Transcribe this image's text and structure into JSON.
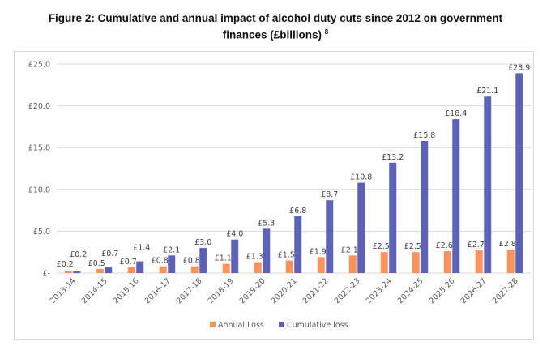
{
  "title_main": "Figure 2: Cumulative and annual impact of alcohol duty cuts since 2012 on government",
  "title_line2": "finances (£billions)",
  "title_footnote": "8",
  "colors": {
    "annual": "#FF9259",
    "cumulative": "#5B62B8",
    "grid": "#D9D9D9"
  },
  "chart_data": {
    "type": "bar",
    "title": "Figure 2: Cumulative and annual impact of alcohol duty cuts since 2012 on government finances (£billions)",
    "xlabel": "",
    "ylabel": "",
    "categories": [
      "2013-14",
      "2014-15",
      "2015-16",
      "2016-17",
      "2017-18",
      "2018-19",
      "2019-20",
      "2020-21",
      "2021-22",
      "2022-23",
      "2023-24",
      "2024-25",
      "2025-26",
      "2026-27",
      "2027-28"
    ],
    "series": [
      {
        "name": "Annual Loss",
        "values": [
          0.2,
          0.5,
          0.7,
          0.8,
          0.8,
          1.1,
          1.3,
          1.5,
          1.9,
          2.1,
          2.5,
          2.5,
          2.6,
          2.7,
          2.8
        ],
        "labels": [
          "£0.2",
          "£0.5",
          "£0.7",
          "£0.8",
          "£0.8",
          "£1.1",
          "£1.3",
          "£1.5",
          "£1.9",
          "£2.1",
          "£2.5",
          "£2.5",
          "£2.6",
          "£2.7",
          "£2.8"
        ]
      },
      {
        "name": "Cumulative loss",
        "values": [
          0.2,
          0.7,
          1.4,
          2.1,
          3.0,
          4.0,
          5.3,
          6.8,
          8.7,
          10.8,
          13.2,
          15.8,
          18.4,
          21.1,
          23.9
        ],
        "labels": [
          "£0.2",
          "£0.7",
          "£1.4",
          "£2.1",
          "£3.0",
          "£4.0",
          "£5.3",
          "£6.8",
          "£8.7",
          "£10.8",
          "£13.2",
          "£15.8",
          "£18.4",
          "£21.1",
          "£23.9"
        ]
      }
    ],
    "ylim": [
      0,
      25
    ],
    "yticks": [
      0,
      5,
      10,
      15,
      20,
      25
    ],
    "ytick_labels": [
      "£-",
      "£5.0",
      "£10.0",
      "£15.0",
      "£20.0",
      "£25.0"
    ],
    "grid": true,
    "legend": "bottom-center"
  }
}
